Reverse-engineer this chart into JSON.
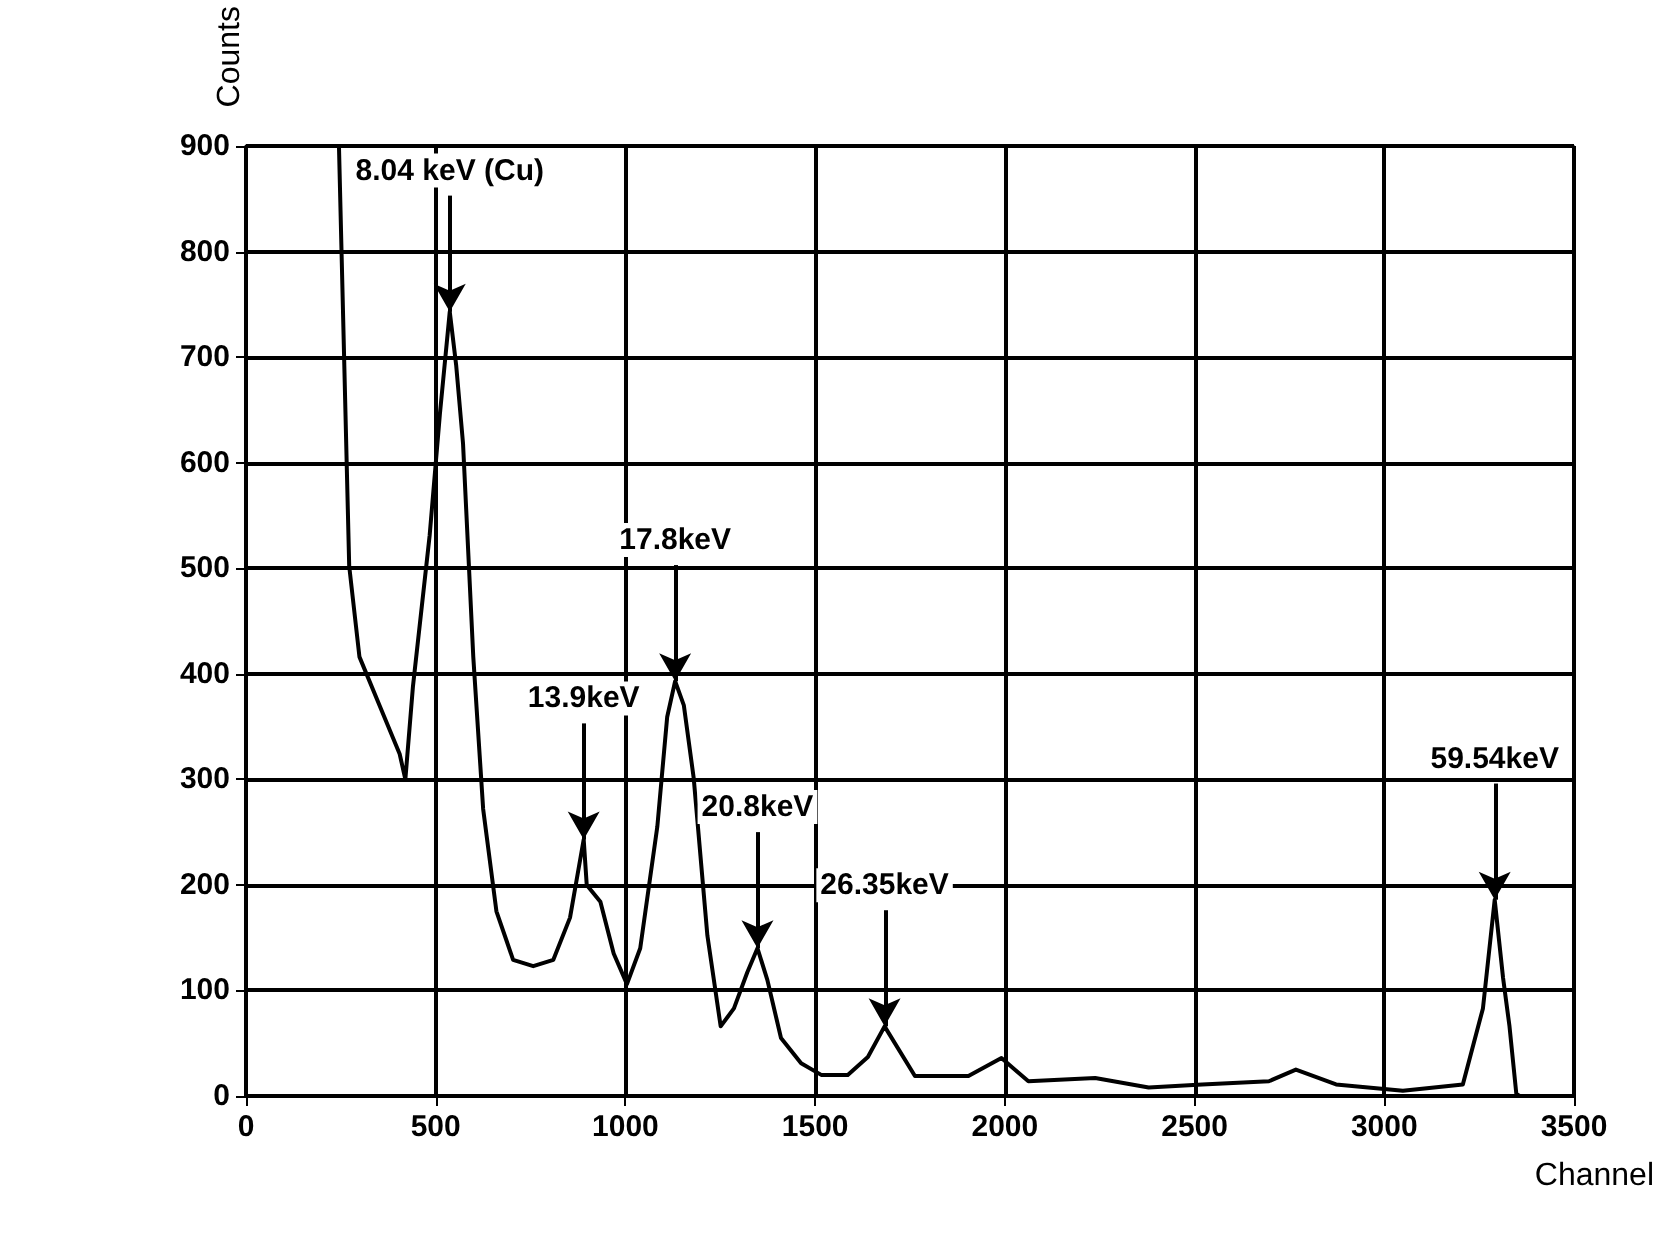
{
  "chart_data": {
    "type": "line",
    "xlabel": "Channel",
    "ylabel": "Counts",
    "xlim": [
      0,
      3500
    ],
    "xticks": [
      0,
      500,
      1000,
      1500,
      2000,
      2500,
      3000,
      3500
    ],
    "ylim": [
      0,
      900
    ],
    "yticks": [
      0,
      100,
      200,
      300,
      400,
      500,
      600,
      700,
      800,
      900
    ],
    "grid": true,
    "marker": "none",
    "line_style": "solid",
    "series": [
      {
        "color": "#000000",
        "x": [
          245,
          272,
          299,
          352,
          405,
          420,
          440,
          484,
          511,
          537,
          554,
          572,
          599,
          625,
          660,
          704,
          757,
          810,
          854,
          890,
          898,
          934,
          969,
          1004,
          1039,
          1084,
          1110,
          1131,
          1154,
          1180,
          1216,
          1251,
          1286,
          1321,
          1348,
          1374,
          1410,
          1463,
          1516,
          1586,
          1639,
          1683,
          1763,
          1904,
          1991,
          2062,
          2238,
          2379,
          2520,
          2696,
          2767,
          2873,
          3049,
          3207,
          3260,
          3291,
          3313,
          3330,
          3348,
          3357
        ],
        "values": [
          900,
          502,
          416,
          370,
          324,
          300,
          388,
          531,
          646,
          743,
          692,
          618,
          416,
          272,
          175,
          129,
          123,
          129,
          169,
          243,
          200,
          184,
          135,
          106,
          140,
          255,
          359,
          393,
          370,
          301,
          152,
          66,
          83,
          117,
          140,
          110,
          55,
          31,
          20,
          20,
          37,
          66,
          19,
          19,
          36,
          14,
          17,
          8,
          11,
          14,
          25,
          11,
          5,
          11,
          83,
          186,
          112,
          66,
          2,
          0
        ]
      }
    ],
    "annotations": [
      {
        "text": "8.04 keV (Cu)",
        "x": 537,
        "y": 743
      },
      {
        "text": "13.9keV",
        "x": 890,
        "y": 243
      },
      {
        "text": "17.8keV",
        "x": 1131,
        "y": 393
      },
      {
        "text": "20.8keV",
        "x": 1348,
        "y": 140
      },
      {
        "text": "26.35keV",
        "x": 1683,
        "y": 66
      },
      {
        "text": "59.54keV",
        "x": 3291,
        "y": 186
      }
    ]
  }
}
